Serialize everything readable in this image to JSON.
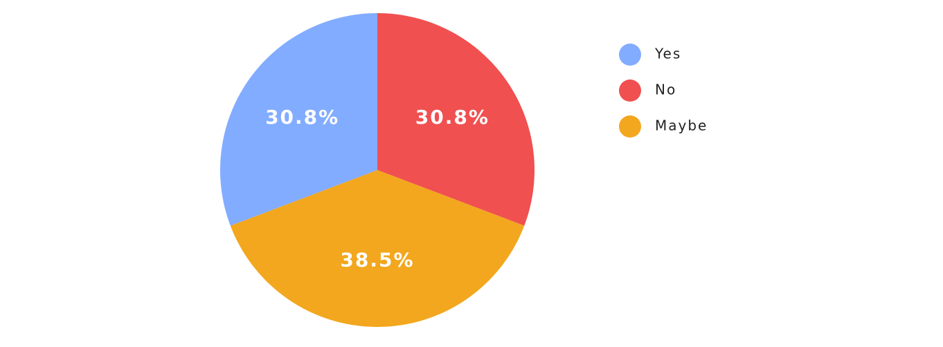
{
  "chart_data": {
    "type": "pie",
    "categories": [
      "Yes",
      "No",
      "Maybe"
    ],
    "values": [
      30.8,
      30.8,
      38.5
    ],
    "value_labels": [
      "30.8%",
      "30.8%",
      "38.5%"
    ],
    "colors": [
      "#82acff",
      "#f05050",
      "#f2a71e"
    ],
    "legend": "right"
  }
}
